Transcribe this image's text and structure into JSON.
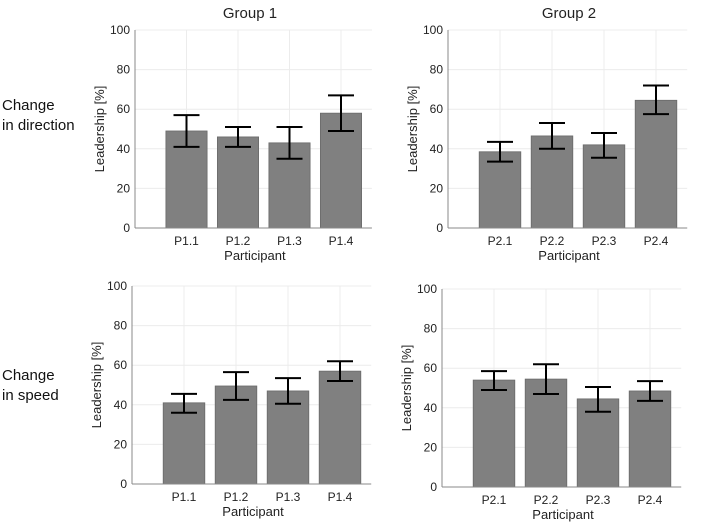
{
  "column_titles": [
    "Group 1",
    "Group 2"
  ],
  "row_labels": [
    [
      "Change",
      "in direction"
    ],
    [
      "Change",
      "in speed"
    ]
  ],
  "colors": {
    "bar": "#808080",
    "bar_edge": "#6a6a6a",
    "error": "#000000",
    "grid": "#ececec",
    "axis": "#888888"
  },
  "chart_data": [
    {
      "type": "bar",
      "title": "Group 1",
      "row": "Change in direction",
      "xlabel": "Participant",
      "ylabel": "Leadership [%]",
      "categories": [
        "P1.1",
        "P1.2",
        "P1.3",
        "P1.4"
      ],
      "values": [
        49,
        46,
        43,
        58
      ],
      "error_low": [
        41,
        41,
        35,
        49
      ],
      "error_high": [
        57,
        51,
        51,
        67
      ],
      "ylim": [
        0,
        100
      ],
      "yticks": [
        "0",
        "20",
        "40",
        "60",
        "80",
        "100"
      ],
      "grid": true
    },
    {
      "type": "bar",
      "title": "Group 2",
      "row": "Change in direction",
      "xlabel": "Participant",
      "ylabel": "Leadership [%]",
      "categories": [
        "P2.1",
        "P2.2",
        "P2.3",
        "P2.4"
      ],
      "values": [
        38.5,
        46.5,
        42,
        64.5
      ],
      "error_low": [
        33.5,
        40,
        35.5,
        57.5
      ],
      "error_high": [
        43.5,
        53,
        48,
        72
      ],
      "ylim": [
        0,
        100
      ],
      "yticks": [
        "0",
        "20",
        "40",
        "60",
        "80",
        "100"
      ],
      "grid": true
    },
    {
      "type": "bar",
      "title": "Group 1",
      "row": "Change in speed",
      "xlabel": "Participant",
      "ylabel": "Leadership [%]",
      "categories": [
        "P1.1",
        "P1.2",
        "P1.3",
        "P1.4"
      ],
      "values": [
        41,
        49.5,
        47,
        57
      ],
      "error_low": [
        36,
        42.5,
        40.5,
        52
      ],
      "error_high": [
        45.5,
        56.5,
        53.5,
        62
      ],
      "ylim": [
        0,
        100
      ],
      "yticks": [
        "0",
        "20",
        "40",
        "60",
        "80",
        "100"
      ],
      "grid": true
    },
    {
      "type": "bar",
      "title": "Group 2",
      "row": "Change in speed",
      "xlabel": "Participant",
      "ylabel": "Leadership [%]",
      "categories": [
        "P2.1",
        "P2.2",
        "P2.3",
        "P2.4"
      ],
      "values": [
        54,
        54.5,
        44.5,
        48.5
      ],
      "error_low": [
        49,
        47,
        38,
        43.5
      ],
      "error_high": [
        58.5,
        62,
        50.5,
        53.5
      ],
      "ylim": [
        0,
        100
      ],
      "yticks": [
        "0",
        "20",
        "40",
        "60",
        "80",
        "100"
      ],
      "grid": true
    }
  ]
}
